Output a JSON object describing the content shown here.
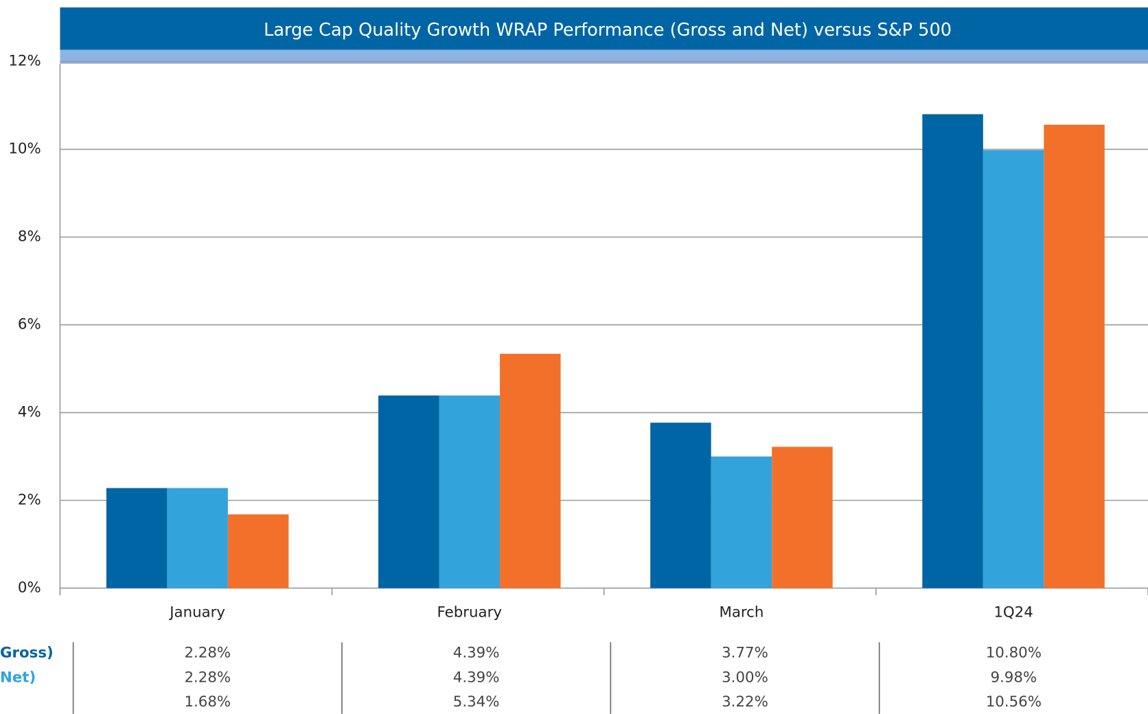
{
  "chart_data": {
    "type": "bar",
    "title": "Large Cap Quality Growth WRAP Performance (Gross and Net) versus S&P 500",
    "categories": [
      "January",
      "February",
      "March",
      "1Q24"
    ],
    "series": [
      {
        "name": "Gross)",
        "color": "#0065a4",
        "values": [
          2.28,
          4.39,
          3.77,
          10.8
        ],
        "value_labels": [
          "2.28%",
          "4.39%",
          "3.77%",
          "10.80%"
        ]
      },
      {
        "name": "Net)",
        "color": "#33a3dc",
        "values": [
          2.28,
          4.39,
          3.0,
          9.98
        ],
        "value_labels": [
          "2.28%",
          "4.39%",
          "3.00%",
          "9.98%"
        ]
      },
      {
        "color": "#f3702a",
        "values": [
          1.68,
          5.34,
          3.22,
          10.56
        ],
        "value_labels": [
          "1.68%",
          "5.34%",
          "3.22%",
          "10.56%"
        ]
      }
    ],
    "ylim": [
      0,
      12
    ],
    "yticks": [
      {
        "value": 0,
        "label": "0%"
      },
      {
        "value": 2,
        "label": "2%"
      },
      {
        "value": 4,
        "label": "4%"
      },
      {
        "value": 6,
        "label": "6%"
      },
      {
        "value": 8,
        "label": "8%"
      },
      {
        "value": 10,
        "label": "10%"
      },
      {
        "value": 12,
        "label": "12%"
      }
    ],
    "grid": true
  }
}
